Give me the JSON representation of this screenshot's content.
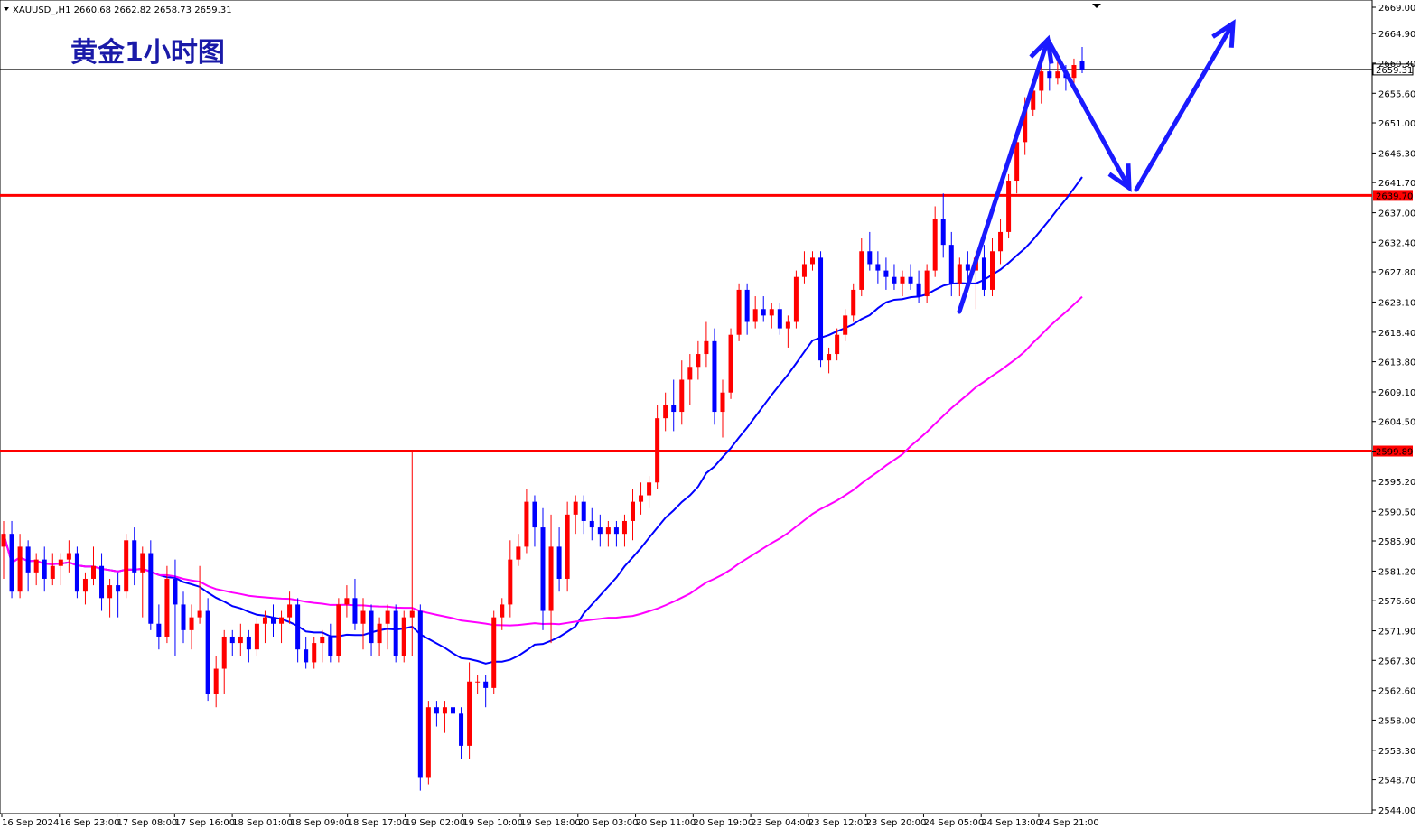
{
  "header": {
    "symbol_info": "XAUUSD_,H1  2660.68 2662.82 2658.73 2659.31",
    "chart_title": "黄金1小时图"
  },
  "chart_data": {
    "type": "candlestick",
    "symbol": "XAUUSD_",
    "timeframe": "H1",
    "ohlc_header": {
      "open": 2660.68,
      "high": 2662.82,
      "low": 2658.73,
      "close": 2659.31
    },
    "current_price": "2659.31",
    "y_ticks": [
      "2669.00",
      "2664.90",
      "2660.30",
      "2655.60",
      "2651.00",
      "2646.30",
      "2641.70",
      "2637.00",
      "2632.40",
      "2627.80",
      "2623.10",
      "2618.40",
      "2613.80",
      "2609.10",
      "2604.50",
      "2599.89",
      "2595.20",
      "2590.50",
      "2585.90",
      "2581.20",
      "2576.60",
      "2571.90",
      "2567.30",
      "2562.60",
      "2558.00",
      "2553.30",
      "2548.70",
      "2544.00"
    ],
    "ylim": [
      2544.0,
      2669.0
    ],
    "x_ticks": [
      "16 Sep 2024",
      "16 Sep 23:00",
      "17 Sep 08:00",
      "17 Sep 16:00",
      "18 Sep 01:00",
      "18 Sep 09:00",
      "18 Sep 17:00",
      "19 Sep 02:00",
      "19 Sep 10:00",
      "19 Sep 18:00",
      "20 Sep 03:00",
      "20 Sep 11:00",
      "20 Sep 19:00",
      "23 Sep 04:00",
      "23 Sep 12:00",
      "23 Sep 20:00",
      "24 Sep 05:00",
      "24 Sep 13:00",
      "24 Sep 21:00"
    ],
    "horizontal_levels": [
      {
        "price": 2639.7,
        "label": "2639.70",
        "color": "#ff0000"
      },
      {
        "price": 2599.89,
        "label": "2599.89",
        "color": "#ff0000"
      },
      {
        "price": 2659.31,
        "label": "2659.31",
        "color": "#000000"
      }
    ],
    "colors": {
      "bull": "#ff0000",
      "bear": "#0000ff",
      "ma_fast": "#0000ff",
      "ma_slow": "#ff00ff",
      "arrows": "#1a1aff"
    },
    "candle_step_bars": 1,
    "candles_ohlc": [
      [
        2585.0,
        2589.0,
        2580.0,
        2587.0
      ],
      [
        2587.0,
        2589.0,
        2577.0,
        2578.0
      ],
      [
        2578.0,
        2587.0,
        2577.0,
        2585.0
      ],
      [
        2585.0,
        2586.0,
        2578.0,
        2581.0
      ],
      [
        2581.0,
        2584.0,
        2579.0,
        2583.0
      ],
      [
        2583.0,
        2585.0,
        2578.0,
        2580.0
      ],
      [
        2580.0,
        2584.0,
        2579.0,
        2582.0
      ],
      [
        2582.0,
        2584.0,
        2579.0,
        2583.0
      ],
      [
        2583.0,
        2586.0,
        2581.0,
        2584.0
      ],
      [
        2584.0,
        2585.0,
        2577.0,
        2578.0
      ],
      [
        2578.0,
        2581.0,
        2576.0,
        2580.0
      ],
      [
        2580.0,
        2585.0,
        2579.0,
        2582.0
      ],
      [
        2582.0,
        2584.0,
        2575.0,
        2577.0
      ],
      [
        2577.0,
        2580.0,
        2574.0,
        2579.0
      ],
      [
        2579.0,
        2581.0,
        2574.0,
        2578.0
      ],
      [
        2578.0,
        2587.0,
        2577.0,
        2586.0
      ],
      [
        2586.0,
        2588.0,
        2579.0,
        2581.0
      ],
      [
        2581.0,
        2585.0,
        2574.0,
        2584.0
      ],
      [
        2584.0,
        2586.0,
        2572.0,
        2573.0
      ],
      [
        2573.0,
        2576.0,
        2569.0,
        2571.0
      ],
      [
        2571.0,
        2582.0,
        2570.0,
        2580.0
      ],
      [
        2580.0,
        2583.0,
        2568.0,
        2576.0
      ],
      [
        2576.0,
        2578.0,
        2570.0,
        2572.0
      ],
      [
        2572.0,
        2576.0,
        2569.0,
        2574.0
      ],
      [
        2574.0,
        2582.0,
        2573.0,
        2575.0
      ],
      [
        2575.0,
        2577.0,
        2561.0,
        2562.0
      ],
      [
        2562.0,
        2568.0,
        2560.0,
        2566.0
      ],
      [
        2566.0,
        2572.0,
        2562.0,
        2571.0
      ],
      [
        2571.0,
        2572.0,
        2568.0,
        2570.0
      ],
      [
        2570.0,
        2573.0,
        2568.0,
        2571.0
      ],
      [
        2571.0,
        2572.0,
        2567.0,
        2569.0
      ],
      [
        2569.0,
        2574.0,
        2568.0,
        2573.0
      ],
      [
        2573.0,
        2575.0,
        2570.0,
        2574.0
      ],
      [
        2574.0,
        2576.0,
        2571.0,
        2573.0
      ],
      [
        2573.0,
        2575.0,
        2570.0,
        2574.0
      ],
      [
        2574.0,
        2578.0,
        2573.0,
        2576.0
      ],
      [
        2576.0,
        2577.0,
        2567.0,
        2569.0
      ],
      [
        2569.0,
        2571.0,
        2566.0,
        2567.0
      ],
      [
        2567.0,
        2571.0,
        2566.0,
        2570.0
      ],
      [
        2570.0,
        2572.0,
        2567.0,
        2571.0
      ],
      [
        2571.0,
        2573.0,
        2567.0,
        2568.0
      ],
      [
        2568.0,
        2577.0,
        2567.0,
        2576.0
      ],
      [
        2576.0,
        2579.0,
        2574.0,
        2577.0
      ],
      [
        2577.0,
        2580.0,
        2572.0,
        2573.0
      ],
      [
        2573.0,
        2577.0,
        2569.0,
        2575.0
      ],
      [
        2575.0,
        2576.0,
        2568.0,
        2570.0
      ],
      [
        2570.0,
        2574.0,
        2568.0,
        2573.0
      ],
      [
        2573.0,
        2576.0,
        2569.0,
        2575.0
      ],
      [
        2575.0,
        2576.0,
        2567.0,
        2568.0
      ],
      [
        2568.0,
        2575.0,
        2567.0,
        2574.0
      ],
      [
        2574.0,
        2600.0,
        2568.0,
        2575.0
      ],
      [
        2575.0,
        2576.0,
        2547.0,
        2549.0
      ],
      [
        2549.0,
        2561.0,
        2548.0,
        2560.0
      ],
      [
        2560.0,
        2561.0,
        2557.0,
        2559.0
      ],
      [
        2559.0,
        2561.0,
        2556.0,
        2560.0
      ],
      [
        2560.0,
        2561.0,
        2557.0,
        2559.0
      ],
      [
        2559.0,
        2560.0,
        2552.0,
        2554.0
      ],
      [
        2554.0,
        2567.0,
        2552.0,
        2564.0
      ],
      [
        2564.0,
        2565.0,
        2562.0,
        2564.0
      ],
      [
        2564.0,
        2565.0,
        2560.0,
        2563.0
      ],
      [
        2563.0,
        2575.0,
        2562.0,
        2574.0
      ],
      [
        2574.0,
        2577.0,
        2572.0,
        2576.0
      ],
      [
        2576.0,
        2586.0,
        2574.0,
        2583.0
      ],
      [
        2583.0,
        2587.0,
        2582.0,
        2585.0
      ],
      [
        2585.0,
        2594.0,
        2584.0,
        2592.0
      ],
      [
        2592.0,
        2593.0,
        2585.0,
        2588.0
      ],
      [
        2588.0,
        2591.0,
        2572.0,
        2575.0
      ],
      [
        2575.0,
        2590.0,
        2570.0,
        2585.0
      ],
      [
        2585.0,
        2588.0,
        2578.0,
        2580.0
      ],
      [
        2580.0,
        2592.0,
        2578.0,
        2590.0
      ],
      [
        2590.0,
        2593.0,
        2587.0,
        2592.0
      ],
      [
        2592.0,
        2593.0,
        2587.0,
        2589.0
      ],
      [
        2589.0,
        2591.0,
        2586.0,
        2588.0
      ],
      [
        2588.0,
        2590.0,
        2585.0,
        2587.0
      ],
      [
        2587.0,
        2589.0,
        2585.0,
        2588.0
      ],
      [
        2588.0,
        2589.0,
        2585.0,
        2587.0
      ],
      [
        2587.0,
        2590.0,
        2585.0,
        2589.0
      ],
      [
        2589.0,
        2594.0,
        2586.0,
        2592.0
      ],
      [
        2592.0,
        2595.0,
        2590.0,
        2593.0
      ],
      [
        2593.0,
        2596.0,
        2591.0,
        2595.0
      ],
      [
        2595.0,
        2607.0,
        2594.0,
        2605.0
      ],
      [
        2605.0,
        2609.0,
        2603.0,
        2607.0
      ],
      [
        2607.0,
        2611.0,
        2603.0,
        2606.0
      ],
      [
        2606.0,
        2614.0,
        2604.0,
        2611.0
      ],
      [
        2611.0,
        2615.0,
        2607.0,
        2613.0
      ],
      [
        2613.0,
        2617.0,
        2611.0,
        2615.0
      ],
      [
        2615.0,
        2620.0,
        2613.0,
        2617.0
      ],
      [
        2617.0,
        2619.0,
        2604.0,
        2606.0
      ],
      [
        2606.0,
        2611.0,
        2602.0,
        2609.0
      ],
      [
        2609.0,
        2619.0,
        2608.0,
        2618.0
      ],
      [
        2618.0,
        2626.0,
        2617.0,
        2625.0
      ],
      [
        2625.0,
        2626.0,
        2618.0,
        2620.0
      ],
      [
        2620.0,
        2624.0,
        2619.0,
        2622.0
      ],
      [
        2622.0,
        2624.0,
        2620.0,
        2621.0
      ],
      [
        2621.0,
        2623.0,
        2619.0,
        2622.0
      ],
      [
        2622.0,
        2623.0,
        2618.0,
        2619.0
      ],
      [
        2619.0,
        2621.0,
        2616.0,
        2620.0
      ],
      [
        2620.0,
        2628.0,
        2619.0,
        2627.0
      ],
      [
        2627.0,
        2631.0,
        2626.0,
        2629.0
      ],
      [
        2629.0,
        2631.0,
        2628.0,
        2630.0
      ],
      [
        2630.0,
        2631.0,
        2613.0,
        2614.0
      ],
      [
        2614.0,
        2616.0,
        2612.0,
        2615.0
      ],
      [
        2615.0,
        2619.0,
        2614.0,
        2618.0
      ],
      [
        2618.0,
        2622.0,
        2617.0,
        2621.0
      ],
      [
        2621.0,
        2626.0,
        2620.0,
        2625.0
      ],
      [
        2625.0,
        2633.0,
        2624.0,
        2631.0
      ],
      [
        2631.0,
        2634.0,
        2628.0,
        2629.0
      ],
      [
        2629.0,
        2631.0,
        2626.0,
        2628.0
      ],
      [
        2628.0,
        2630.0,
        2625.0,
        2627.0
      ],
      [
        2627.0,
        2629.0,
        2625.0,
        2626.0
      ],
      [
        2626.0,
        2628.0,
        2624.0,
        2627.0
      ],
      [
        2627.0,
        2629.0,
        2625.0,
        2626.0
      ],
      [
        2626.0,
        2628.0,
        2623.0,
        2624.0
      ],
      [
        2624.0,
        2629.0,
        2623.0,
        2628.0
      ],
      [
        2628.0,
        2638.0,
        2627.0,
        2636.0
      ],
      [
        2636.0,
        2640.0,
        2630.0,
        2632.0
      ],
      [
        2632.0,
        2634.0,
        2624.0,
        2626.0
      ],
      [
        2626.0,
        2630.0,
        2624.0,
        2629.0
      ],
      [
        2629.0,
        2631.0,
        2625.0,
        2628.0
      ],
      [
        2628.0,
        2631.0,
        2622.0,
        2630.0
      ],
      [
        2630.0,
        2632.0,
        2624.0,
        2625.0
      ],
      [
        2625.0,
        2633.0,
        2624.0,
        2631.0
      ],
      [
        2631.0,
        2636.0,
        2629.0,
        2634.0
      ],
      [
        2634.0,
        2643.0,
        2633.0,
        2642.0
      ],
      [
        2642.0,
        2650.0,
        2640.0,
        2648.0
      ],
      [
        2648.0,
        2655.0,
        2646.0,
        2653.0
      ],
      [
        2653.0,
        2657.0,
        2652.0,
        2656.0
      ],
      [
        2656.0,
        2661.0,
        2654.0,
        2659.0
      ],
      [
        2659.0,
        2662.0,
        2656.0,
        2658.0
      ],
      [
        2658.0,
        2661.0,
        2657.0,
        2659.0
      ],
      [
        2659.0,
        2660.0,
        2656.0,
        2658.0
      ],
      [
        2658.0,
        2661.0,
        2657.0,
        2660.0
      ],
      [
        2660.68,
        2662.82,
        2658.73,
        2659.31
      ]
    ]
  }
}
